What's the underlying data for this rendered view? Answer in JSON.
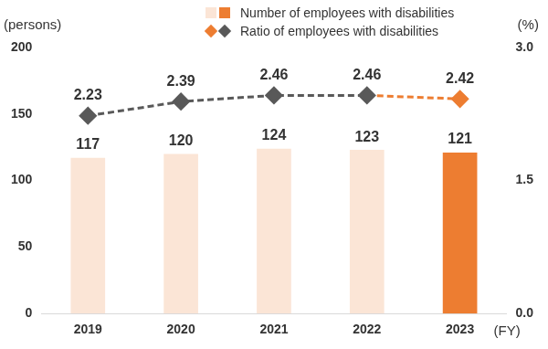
{
  "chart_data": {
    "type": "bar",
    "categories": [
      "2019",
      "2020",
      "2021",
      "2022",
      "2023"
    ],
    "x_label": "(FY)",
    "y_label": "(persons)",
    "y2_label": "(%)",
    "ylim": [
      0,
      200
    ],
    "yticks": [
      0,
      50,
      100,
      150,
      200
    ],
    "y2lim": [
      0,
      3
    ],
    "y2ticks": [
      {
        "value": 0,
        "label": "0.0"
      },
      1.5,
      {
        "value": 3,
        "label": "3.0"
      }
    ],
    "grid": false,
    "legend": "top",
    "data_labels": true,
    "series": [
      {
        "name": "Number of employees with disabilities",
        "type": "bar",
        "colors": [
          "#fbe5d6",
          "#fbe5d6",
          "#fbe5d6",
          "#fbe5d6",
          "#ed7d31"
        ],
        "values": [
          117,
          120,
          124,
          123,
          121
        ]
      },
      {
        "name": "Ratio of employees with disabilities",
        "type": "line",
        "axis": "y2",
        "line_style": "dashed",
        "marker": "diamond",
        "colors": [
          "#595959",
          "#595959",
          "#595959",
          "#595959",
          "#ed7d31"
        ],
        "values": [
          2.23,
          2.39,
          2.46,
          2.46,
          2.42
        ]
      }
    ]
  }
}
